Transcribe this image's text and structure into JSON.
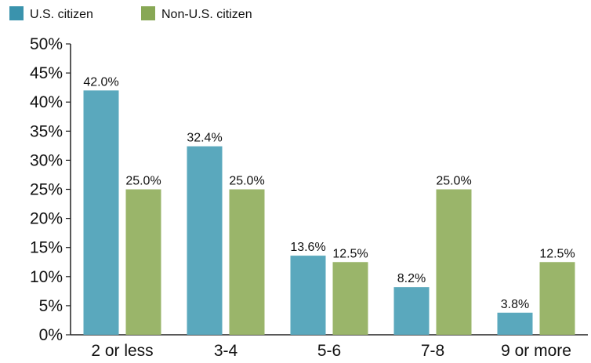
{
  "chart_data": {
    "type": "bar",
    "categories": [
      "2 or less",
      "3-4",
      "5-6",
      "7-8",
      "9 or more"
    ],
    "series": [
      {
        "name": "U.S. citizen",
        "color": "#5aa8bd",
        "legend_color": "#3a93ad",
        "values": [
          42.0,
          32.4,
          13.6,
          8.2,
          3.8
        ],
        "labels": [
          "42.0%",
          "32.4%",
          "13.6%",
          "8.2%",
          "3.8%"
        ]
      },
      {
        "name": "Non-U.S. citizen",
        "color": "#9ab56a",
        "legend_color": "#88a855",
        "values": [
          25.0,
          25.0,
          12.5,
          25.0,
          12.5
        ],
        "labels": [
          "25.0%",
          "25.0%",
          "12.5%",
          "25.0%",
          "12.5%"
        ]
      }
    ],
    "y_ticks": [
      "0%",
      "5%",
      "10%",
      "15%",
      "20%",
      "25%",
      "30%",
      "35%",
      "40%",
      "45%",
      "50%"
    ],
    "ylim": [
      0,
      50
    ],
    "legend_position": "top-left",
    "grid": false,
    "title": "",
    "xlabel": "",
    "ylabel": ""
  }
}
